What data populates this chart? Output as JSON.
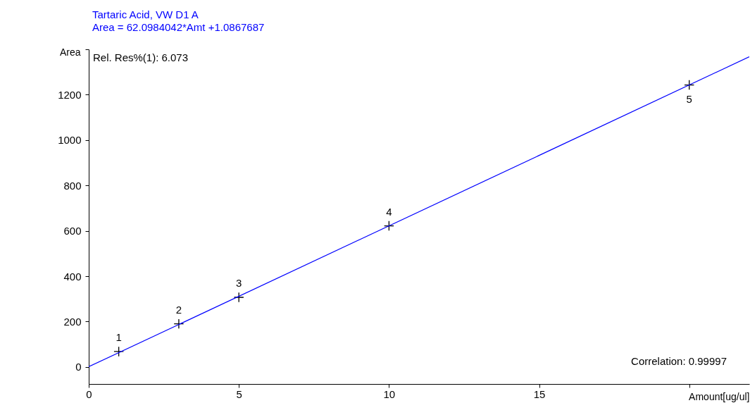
{
  "chart_data": {
    "type": "scatter",
    "title": "Tartaric Acid, VW D1 A",
    "subtitle": "Area = 62.0984042*Amt +1.0867687",
    "xlabel": "Amount[ug/ul]",
    "ylabel": "Area",
    "series": [
      {
        "color": "#000000",
        "x": [
          1,
          3,
          5,
          10,
          20
        ],
        "values": [
          68,
          190,
          307,
          622,
          1243
        ],
        "marker": "cross"
      },
      {
        "type": "line",
        "color": "#0000ff",
        "x": [
          0,
          22
        ],
        "values": [
          1,
          1367
        ],
        "line_style": "solid"
      }
    ],
    "annotations": [
      "Rel. Res%(1): 6.073",
      "Correlation: 0.99997",
      {
        "text": "1",
        "x": 1,
        "y": 68
      },
      {
        "text": "2",
        "x": 3,
        "y": 190
      },
      {
        "text": "3",
        "x": 5,
        "y": 307
      },
      {
        "text": "4",
        "x": 10,
        "y": 622
      },
      {
        "text": "5",
        "x": 20,
        "y": 1243
      }
    ],
    "xlim": [
      0,
      22
    ],
    "ylim": [
      -75,
      1400
    ],
    "xticks": [
      0,
      5,
      10,
      15,
      {
        "value": 20,
        "label": null
      }
    ],
    "yticks": [
      0,
      200,
      400,
      600,
      800,
      1000,
      1200,
      {
        "value": 1400,
        "label": null
      }
    ],
    "grid": false
  }
}
